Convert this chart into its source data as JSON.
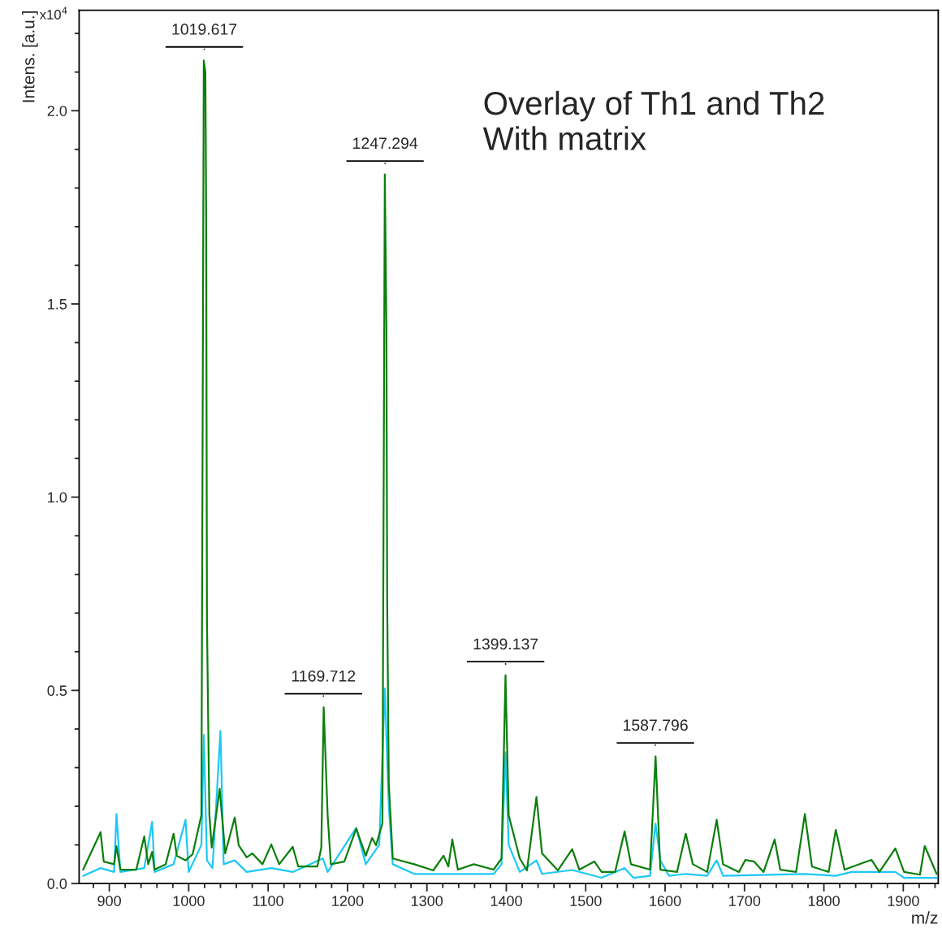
{
  "chart_data": {
    "type": "line",
    "xlabel": "m/z",
    "ylabel": "Intens. [a.u.]",
    "xlim": [
      862,
      1944
    ],
    "ylim": [
      0,
      2.26
    ],
    "xticks": [
      {
        "value": 880,
        "label": null
      },
      {
        "value": 900,
        "label": "900"
      },
      {
        "value": 920,
        "label": null
      },
      {
        "value": 940,
        "label": null
      },
      {
        "value": 960,
        "label": null
      },
      {
        "value": 980,
        "label": null
      },
      {
        "value": 1000,
        "label": "1000"
      },
      {
        "value": 1020,
        "label": null
      },
      {
        "value": 1040,
        "label": null
      },
      {
        "value": 1060,
        "label": null
      },
      {
        "value": 1080,
        "label": null
      },
      {
        "value": 1100,
        "label": "1100"
      },
      {
        "value": 1120,
        "label": null
      },
      {
        "value": 1140,
        "label": null
      },
      {
        "value": 1160,
        "label": null
      },
      {
        "value": 1180,
        "label": null
      },
      {
        "value": 1200,
        "label": "1200"
      },
      {
        "value": 1220,
        "label": null
      },
      {
        "value": 1240,
        "label": null
      },
      {
        "value": 1260,
        "label": null
      },
      {
        "value": 1280,
        "label": null
      },
      {
        "value": 1300,
        "label": "1300"
      },
      {
        "value": 1320,
        "label": null
      },
      {
        "value": 1340,
        "label": null
      },
      {
        "value": 1360,
        "label": null
      },
      {
        "value": 1380,
        "label": null
      },
      {
        "value": 1400,
        "label": "1400"
      },
      {
        "value": 1420,
        "label": null
      },
      {
        "value": 1440,
        "label": null
      },
      {
        "value": 1460,
        "label": null
      },
      {
        "value": 1480,
        "label": null
      },
      {
        "value": 1500,
        "label": "1500"
      },
      {
        "value": 1520,
        "label": null
      },
      {
        "value": 1540,
        "label": null
      },
      {
        "value": 1560,
        "label": null
      },
      {
        "value": 1580,
        "label": null
      },
      {
        "value": 1600,
        "label": "1600"
      },
      {
        "value": 1620,
        "label": null
      },
      {
        "value": 1640,
        "label": null
      },
      {
        "value": 1660,
        "label": null
      },
      {
        "value": 1680,
        "label": null
      },
      {
        "value": 1700,
        "label": "1700"
      },
      {
        "value": 1720,
        "label": null
      },
      {
        "value": 1740,
        "label": null
      },
      {
        "value": 1760,
        "label": null
      },
      {
        "value": 1780,
        "label": null
      },
      {
        "value": 1800,
        "label": "1800"
      },
      {
        "value": 1820,
        "label": null
      },
      {
        "value": 1840,
        "label": null
      },
      {
        "value": 1860,
        "label": null
      },
      {
        "value": 1880,
        "label": null
      },
      {
        "value": 1900,
        "label": "1900"
      },
      {
        "value": 1920,
        "label": null
      },
      {
        "value": 1940,
        "label": null
      }
    ],
    "yticks": [
      {
        "value": 0,
        "label": "0.0"
      },
      {
        "value": 0.1,
        "label": null
      },
      {
        "value": 0.2,
        "label": null
      },
      {
        "value": 0.3,
        "label": null
      },
      {
        "value": 0.4,
        "label": null
      },
      {
        "value": 0.5,
        "label": "0.5"
      },
      {
        "value": 0.6,
        "label": null
      },
      {
        "value": 0.7,
        "label": null
      },
      {
        "value": 0.8,
        "label": null
      },
      {
        "value": 0.9,
        "label": null
      },
      {
        "value": 1.0,
        "label": "1.0"
      },
      {
        "value": 1.1,
        "label": null
      },
      {
        "value": 1.2,
        "label": null
      },
      {
        "value": 1.3,
        "label": null
      },
      {
        "value": 1.4,
        "label": null
      },
      {
        "value": 1.5,
        "label": "1.5"
      },
      {
        "value": 1.6,
        "label": null
      },
      {
        "value": 1.7,
        "label": null
      },
      {
        "value": 1.8,
        "label": null
      },
      {
        "value": 1.9,
        "label": null
      },
      {
        "value": 2.0,
        "label": "2.0"
      },
      {
        "value": 2.1,
        "label": null
      },
      {
        "value": 2.2,
        "label": null
      }
    ],
    "grid": false,
    "legend": false,
    "marker": "none",
    "line_style": "solid",
    "series": [
      {
        "color": "#1ec8f5",
        "x": [
          867,
          889,
          906,
          909,
          914,
          944,
          954,
          957,
          981,
          996,
          1000,
          1016,
          1019,
          1023,
          1030,
          1040,
          1044,
          1058,
          1073,
          1104,
          1131,
          1169,
          1175,
          1211,
          1223,
          1240,
          1247,
          1252,
          1257,
          1284,
          1332,
          1384,
          1394,
          1399,
          1403,
          1417,
          1438,
          1445,
          1483,
          1520,
          1549,
          1560,
          1581,
          1588,
          1594,
          1605,
          1626,
          1653,
          1665,
          1673,
          1776,
          1815,
          1835,
          1890,
          1901,
          1942
        ],
        "values": [
          0.02,
          0.04,
          0.03,
          0.18,
          0.03,
          0.04,
          0.16,
          0.03,
          0.05,
          0.165,
          0.03,
          0.1,
          0.385,
          0.06,
          0.04,
          0.395,
          0.05,
          0.06,
          0.03,
          0.04,
          0.03,
          0.065,
          0.03,
          0.144,
          0.05,
          0.1,
          0.505,
          0.2,
          0.05,
          0.025,
          0.025,
          0.025,
          0.05,
          0.34,
          0.1,
          0.03,
          0.06,
          0.025,
          0.035,
          0.015,
          0.04,
          0.015,
          0.02,
          0.155,
          0.06,
          0.02,
          0.025,
          0.02,
          0.06,
          0.02,
          0.025,
          0.02,
          0.03,
          0.03,
          0.015,
          0.015
        ]
      },
      {
        "color": "#0b7f0b",
        "x": [
          867,
          889,
          893,
          906,
          909,
          914,
          934,
          944,
          949,
          954,
          957,
          971,
          981,
          985,
          996,
          1005,
          1016,
          1019,
          1021,
          1022,
          1023,
          1026,
          1029,
          1039,
          1046,
          1058,
          1063,
          1073,
          1080,
          1093,
          1104,
          1114,
          1131,
          1138,
          1162,
          1167,
          1170,
          1175,
          1179,
          1196,
          1211,
          1223,
          1231,
          1236,
          1244,
          1247,
          1249,
          1250,
          1252,
          1257,
          1284,
          1308,
          1321,
          1327,
          1332,
          1339,
          1359,
          1384,
          1394,
          1399,
          1403,
          1417,
          1426,
          1438,
          1445,
          1465,
          1483,
          1492,
          1511,
          1520,
          1537,
          1549,
          1557,
          1581,
          1588,
          1594,
          1615,
          1626,
          1635,
          1653,
          1665,
          1673,
          1693,
          1701,
          1712,
          1724,
          1738,
          1745,
          1765,
          1776,
          1785,
          1806,
          1815,
          1826,
          1854,
          1860,
          1870,
          1890,
          1901,
          1921,
          1927,
          1942
        ],
        "values": [
          0.036,
          0.133,
          0.057,
          0.05,
          0.097,
          0.036,
          0.036,
          0.122,
          0.05,
          0.082,
          0.036,
          0.05,
          0.129,
          0.072,
          0.06,
          0.076,
          0.177,
          2.13,
          2.1,
          1.73,
          0.68,
          0.18,
          0.093,
          0.245,
          0.078,
          0.171,
          0.099,
          0.068,
          0.078,
          0.05,
          0.101,
          0.05,
          0.095,
          0.044,
          0.044,
          0.093,
          0.456,
          0.177,
          0.05,
          0.057,
          0.142,
          0.072,
          0.118,
          0.099,
          0.156,
          1.835,
          1.44,
          0.73,
          0.26,
          0.065,
          0.05,
          0.034,
          0.072,
          0.044,
          0.114,
          0.036,
          0.05,
          0.036,
          0.065,
          0.539,
          0.177,
          0.065,
          0.034,
          0.224,
          0.078,
          0.034,
          0.089,
          0.036,
          0.057,
          0.03,
          0.03,
          0.135,
          0.05,
          0.036,
          0.329,
          0.036,
          0.03,
          0.129,
          0.05,
          0.03,
          0.165,
          0.05,
          0.03,
          0.061,
          0.057,
          0.03,
          0.114,
          0.036,
          0.03,
          0.18,
          0.044,
          0.03,
          0.139,
          0.036,
          0.057,
          0.061,
          0.03,
          0.091,
          0.03,
          0.023,
          0.097,
          0.025
        ]
      }
    ],
    "annotations": [
      {
        "text": "1019.617",
        "x": 1019.617,
        "y": 2.13
      },
      {
        "text": "1247.294",
        "x": 1247.294,
        "y": 1.835
      },
      {
        "text": "1169.712",
        "x": 1169.712,
        "y": 0.456
      },
      {
        "text": "1399.137",
        "x": 1399.137,
        "y": 0.539
      },
      {
        "text": "1587.796",
        "x": 1587.796,
        "y": 0.329
      },
      "Overlay of Th1 and Th2\nWith matrix",
      "x10$^{4}$"
    ]
  }
}
